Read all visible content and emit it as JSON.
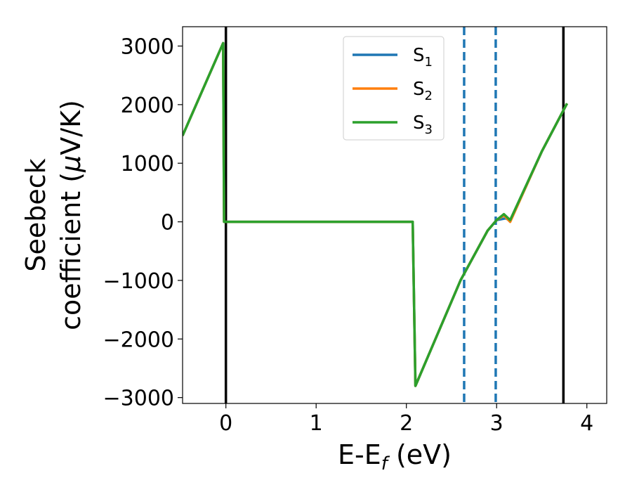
{
  "chart_data": {
    "type": "line",
    "xlabel_main": "E-E",
    "xlabel_sub": "f",
    "xlabel_unit": " (eV)",
    "ylabel_line1": "Seebeck",
    "ylabel_line2_prefix": "coefficient  (",
    "ylabel_line2_mu": "μ",
    "ylabel_line2_suffix": "V/K)",
    "xlim": [
      -0.48,
      4.22
    ],
    "ylim": [
      -3100,
      3330
    ],
    "xticks": [
      0,
      1,
      2,
      3,
      4
    ],
    "yticks": [
      -3000,
      -2000,
      -1000,
      0,
      1000,
      2000,
      3000
    ],
    "xtick_labels": [
      "0",
      "1",
      "2",
      "3",
      "4"
    ],
    "ytick_labels": [
      "−3000",
      "−2000",
      "−1000",
      "0",
      "1000",
      "2000",
      "3000"
    ],
    "grid": false,
    "legend_position": "top-center",
    "series": [
      {
        "name": "S",
        "sub": "1",
        "color": "#1f77b4",
        "points": [
          [
            -0.48,
            1470
          ],
          [
            -0.03,
            3050
          ],
          [
            -0.02,
            0
          ],
          [
            2.07,
            0
          ],
          [
            2.1,
            -2800
          ],
          [
            2.6,
            -1000
          ],
          [
            2.9,
            -150
          ],
          [
            3.0,
            30
          ],
          [
            3.1,
            60
          ],
          [
            3.15,
            20
          ],
          [
            3.5,
            1200
          ],
          [
            3.78,
            2020
          ]
        ]
      },
      {
        "name": "S",
        "sub": "2",
        "color": "#ff7f0e",
        "points": [
          [
            -0.48,
            1470
          ],
          [
            -0.03,
            3050
          ],
          [
            -0.02,
            0
          ],
          [
            2.07,
            0
          ],
          [
            2.1,
            -2800
          ],
          [
            2.6,
            -1000
          ],
          [
            2.9,
            -150
          ],
          [
            3.0,
            30
          ],
          [
            3.08,
            110
          ],
          [
            3.15,
            0
          ],
          [
            3.5,
            1200
          ],
          [
            3.78,
            2020
          ]
        ]
      },
      {
        "name": "S",
        "sub": "3",
        "color": "#2ca02c",
        "points": [
          [
            -0.48,
            1470
          ],
          [
            -0.03,
            3050
          ],
          [
            -0.02,
            0
          ],
          [
            2.07,
            0
          ],
          [
            2.1,
            -2800
          ],
          [
            2.6,
            -1000
          ],
          [
            2.9,
            -150
          ],
          [
            3.0,
            30
          ],
          [
            3.08,
            130
          ],
          [
            3.15,
            30
          ],
          [
            3.5,
            1200
          ],
          [
            3.78,
            2020
          ]
        ]
      }
    ],
    "vlines": [
      {
        "x": 0.0,
        "style": "solid",
        "color": "#000000"
      },
      {
        "x": 3.74,
        "style": "solid",
        "color": "#000000"
      },
      {
        "x": 2.64,
        "style": "dashed",
        "color": "#1f77b4"
      },
      {
        "x": 2.99,
        "style": "dashed",
        "color": "#1f77b4"
      }
    ]
  }
}
